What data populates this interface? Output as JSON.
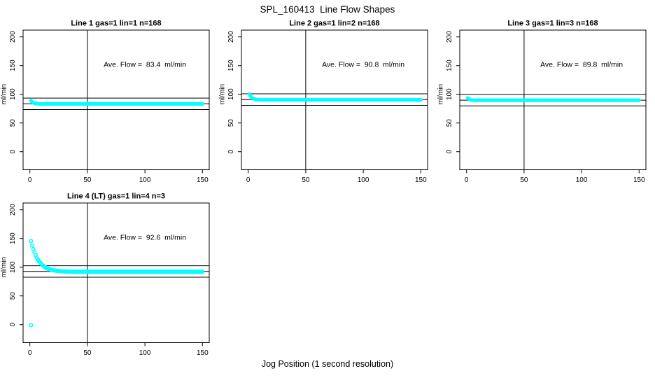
{
  "figure": {
    "title": "SPL_160413  Line Flow Shapes",
    "xlabel": "Jog Position (1 second resolution)",
    "background_color": "#ffffff",
    "marker_color": "#00ffff",
    "axis_color": "#000000"
  },
  "chart_data": [
    {
      "type": "scatter",
      "title": "Line 1 gas=1 lin=1 n=168",
      "gas": 1,
      "lin": 1,
      "n": 168,
      "annotation": "Ave. Flow =  83.4  ml/min",
      "ave_flow_ml_min": 83.4,
      "ylabel": "ml/min",
      "xticks": [
        0,
        50,
        100,
        150
      ],
      "yticks": [
        0,
        50,
        100,
        150,
        200
      ],
      "xlim": [
        -6,
        156
      ],
      "ylim": [
        -31,
        212
      ],
      "grid": false,
      "vline_x": 50,
      "hlines_y": [
        73.4,
        83.4,
        93.4
      ],
      "marker": "filled-circle",
      "marker_color": "#00ffff",
      "decay_points": [
        [
          1,
          88.8
        ],
        [
          2,
          86.5
        ],
        [
          3,
          85.1
        ],
        [
          4,
          84.3
        ],
        [
          5,
          83.9
        ],
        [
          6,
          83.6
        ],
        [
          7,
          83.5
        ],
        [
          8,
          83.4
        ]
      ],
      "flat_segment": {
        "x_from": 9,
        "x_to": 150,
        "x_step": 1,
        "y": 83.3
      },
      "extra_points": []
    },
    {
      "type": "scatter",
      "title": "Line 2 gas=1 lin=2 n=168",
      "gas": 1,
      "lin": 2,
      "n": 168,
      "annotation": "Ave. Flow =  90.8  ml/min",
      "ave_flow_ml_min": 90.8,
      "ylabel": "ml/min",
      "xticks": [
        0,
        50,
        100,
        150
      ],
      "yticks": [
        0,
        50,
        100,
        150,
        200
      ],
      "xlim": [
        -6,
        156
      ],
      "ylim": [
        -31,
        212
      ],
      "grid": false,
      "vline_x": 50,
      "hlines_y": [
        80.8,
        90.8,
        100.8
      ],
      "marker": "filled-circle",
      "marker_color": "#00ffff",
      "decay_points": [
        [
          1,
          100.5
        ],
        [
          2,
          96.8
        ],
        [
          3,
          94.4
        ],
        [
          4,
          92.9
        ],
        [
          5,
          92.0
        ],
        [
          6,
          91.4
        ],
        [
          7,
          91.0
        ],
        [
          8,
          90.7
        ],
        [
          9,
          90.6
        ],
        [
          10,
          90.5
        ],
        [
          11,
          90.4
        ]
      ],
      "flat_segment": {
        "x_from": 12,
        "x_to": 150,
        "x_step": 1,
        "y": 90.3
      },
      "extra_points": []
    },
    {
      "type": "scatter",
      "title": "Line 3 gas=1 lin=3 n=168",
      "gas": 1,
      "lin": 3,
      "n": 168,
      "annotation": "Ave. Flow =  89.8  ml/min",
      "ave_flow_ml_min": 89.8,
      "ylabel": "ml/min",
      "xticks": [
        0,
        50,
        100,
        150
      ],
      "yticks": [
        0,
        50,
        100,
        150,
        200
      ],
      "xlim": [
        -6,
        156
      ],
      "ylim": [
        -31,
        212
      ],
      "grid": false,
      "vline_x": 50,
      "hlines_y": [
        79.8,
        89.8,
        99.8
      ],
      "marker": "filled-circle",
      "marker_color": "#00ffff",
      "decay_points": [
        [
          1,
          93.5
        ],
        [
          2,
          91.7
        ],
        [
          3,
          90.8
        ],
        [
          4,
          90.3
        ],
        [
          5,
          90.0
        ],
        [
          6,
          89.9
        ],
        [
          7,
          89.8
        ]
      ],
      "flat_segment": {
        "x_from": 8,
        "x_to": 150,
        "x_step": 1,
        "y": 89.7
      },
      "extra_points": []
    },
    {
      "type": "scatter",
      "title": "Line 4 (LT) gas=1 lin=4 n=3",
      "gas": 1,
      "lin": 4,
      "n": 3,
      "annotation": "Ave. Flow =  92.6  ml/min",
      "ave_flow_ml_min": 92.6,
      "ylabel": "ml/min",
      "xticks": [
        0,
        50,
        100,
        150
      ],
      "yticks": [
        0,
        50,
        100,
        150,
        200
      ],
      "xlim": [
        -6,
        156
      ],
      "ylim": [
        -31,
        212
      ],
      "grid": false,
      "vline_x": 50,
      "hlines_y": [
        82.6,
        92.6,
        102.6
      ],
      "marker": "open-circle",
      "marker_color": "#00ffff",
      "decay_points": [
        [
          1,
          145.5
        ],
        [
          2,
          137.8
        ],
        [
          3,
          131.3
        ],
        [
          4,
          125.7
        ],
        [
          5,
          120.9
        ],
        [
          6,
          116.8
        ],
        [
          7,
          113.2
        ],
        [
          8,
          110.2
        ],
        [
          9,
          107.6
        ],
        [
          10,
          105.4
        ],
        [
          11,
          103.5
        ],
        [
          12,
          101.8
        ],
        [
          13,
          100.4
        ],
        [
          14,
          99.2
        ],
        [
          15,
          98.2
        ],
        [
          16,
          97.3
        ],
        [
          17,
          96.6
        ],
        [
          18,
          95.9
        ],
        [
          19,
          95.4
        ],
        [
          20,
          94.9
        ],
        [
          21,
          94.5
        ],
        [
          22,
          94.1
        ],
        [
          23,
          93.8
        ],
        [
          24,
          93.6
        ],
        [
          25,
          93.4
        ],
        [
          26,
          93.2
        ],
        [
          27,
          93.0
        ],
        [
          28,
          92.9
        ],
        [
          29,
          92.7
        ],
        [
          30,
          92.6
        ],
        [
          31,
          92.6
        ],
        [
          32,
          92.5
        ],
        [
          33,
          92.4
        ],
        [
          34,
          92.4
        ],
        [
          35,
          92.3
        ],
        [
          36,
          92.3
        ],
        [
          37,
          92.2
        ],
        [
          38,
          92.2
        ],
        [
          39,
          92.2
        ],
        [
          40,
          92.1
        ]
      ],
      "flat_segment": {
        "x_from": 41,
        "x_to": 150,
        "x_step": 1,
        "y": 92.1
      },
      "extra_points": [
        [
          1,
          -1
        ]
      ]
    }
  ]
}
